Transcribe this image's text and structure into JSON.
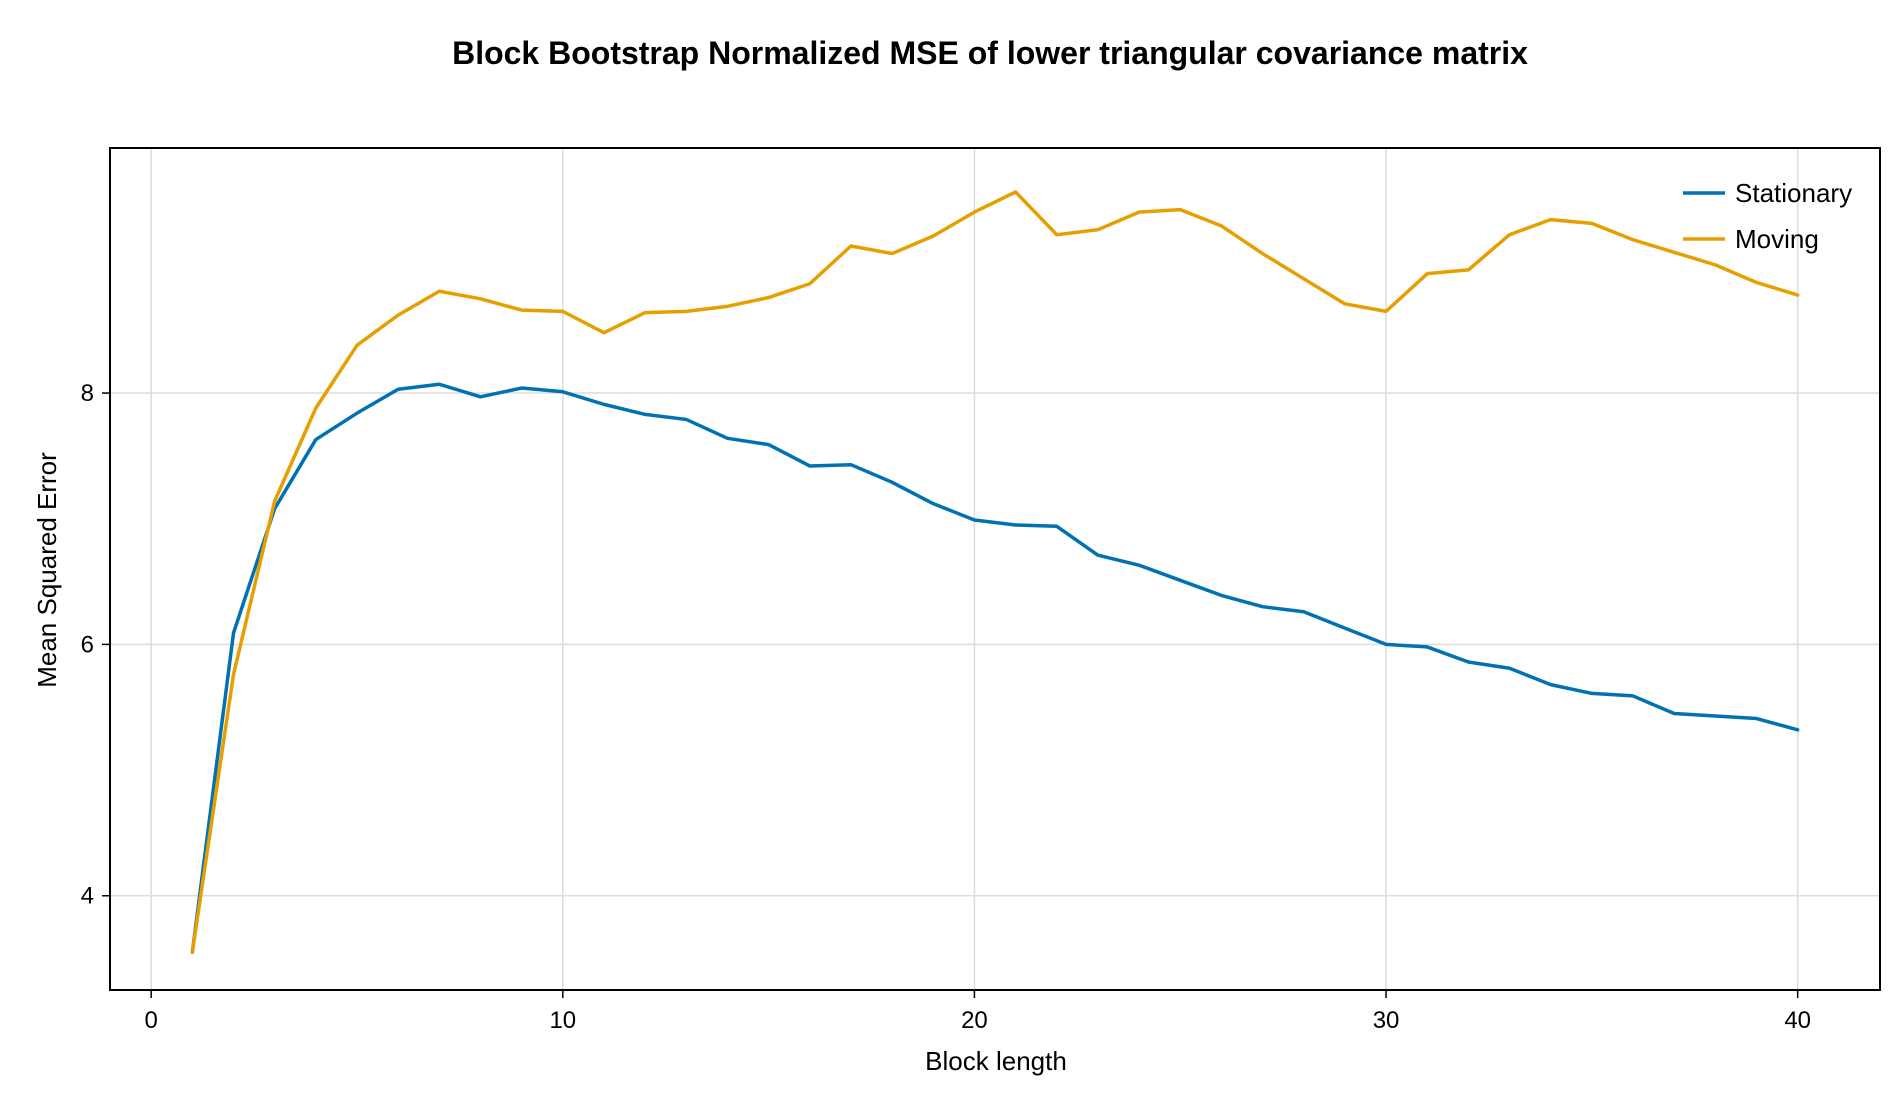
{
  "chart_data": {
    "type": "line",
    "title": "Block Bootstrap Normalized MSE of lower triangular covariance matrix",
    "xlabel": "Block length",
    "ylabel": "Mean Squared Error",
    "xlim": [
      -1,
      42
    ],
    "ylim": [
      3.25,
      9.95
    ],
    "xticks": [
      0,
      10,
      20,
      30,
      40
    ],
    "yticks": [
      4,
      6,
      8
    ],
    "grid": true,
    "legend_position": "top-right",
    "x": [
      1,
      2,
      3,
      4,
      5,
      6,
      7,
      8,
      9,
      10,
      11,
      12,
      13,
      14,
      15,
      16,
      17,
      18,
      19,
      20,
      21,
      22,
      23,
      24,
      25,
      26,
      27,
      28,
      29,
      30,
      31,
      32,
      33,
      34,
      35,
      36,
      37,
      38,
      39,
      40
    ],
    "series": [
      {
        "name": "Stationary",
        "color": "#0072b2",
        "values": [
          3.55,
          6.09,
          7.08,
          7.63,
          7.84,
          8.03,
          8.07,
          7.97,
          8.04,
          8.01,
          7.91,
          7.83,
          7.79,
          7.64,
          7.59,
          7.42,
          7.43,
          7.29,
          7.12,
          6.99,
          6.95,
          6.94,
          6.71,
          6.63,
          6.51,
          6.39,
          6.3,
          6.26,
          6.13,
          6.0,
          5.98,
          5.86,
          5.81,
          5.68,
          5.61,
          5.59,
          5.45,
          5.43,
          5.41,
          5.32
        ]
      },
      {
        "name": "Moving",
        "color": "#e69f00",
        "values": [
          3.55,
          5.76,
          7.14,
          7.88,
          8.38,
          8.62,
          8.81,
          8.75,
          8.66,
          8.65,
          8.48,
          8.64,
          8.65,
          8.69,
          8.76,
          8.87,
          9.17,
          9.11,
          9.25,
          9.44,
          9.6,
          9.26,
          9.3,
          9.44,
          9.46,
          9.33,
          9.11,
          8.91,
          8.71,
          8.65,
          8.95,
          8.98,
          9.26,
          9.38,
          9.35,
          9.22,
          9.12,
          9.02,
          8.88,
          8.78
        ]
      }
    ]
  }
}
